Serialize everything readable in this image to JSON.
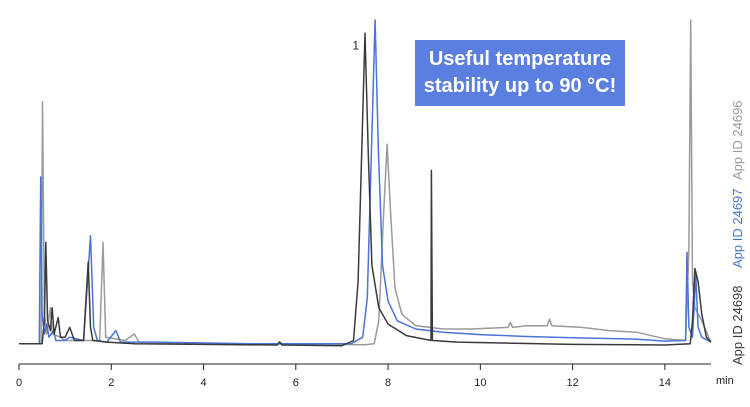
{
  "callout": {
    "text": "Useful temperature stability up to 90 °C!"
  },
  "app_ids": {
    "black": "App ID 24698",
    "blue": "App ID 24697",
    "gray": "App ID 24696"
  },
  "colors": {
    "black": "#3a3a3a",
    "blue": "#4a73d6",
    "gray": "#9a9a9a",
    "callout": "#5b7fe0"
  },
  "chart_data": {
    "type": "line",
    "title": "",
    "xlabel": "min",
    "ylabel": "",
    "xlim": [
      0,
      15
    ],
    "ylim": [
      0,
      100
    ],
    "x_ticks": [
      0,
      2,
      4,
      6,
      8,
      10,
      12,
      14
    ],
    "y_axis_visible": false,
    "grid": false,
    "annotations": [
      {
        "text": "1",
        "x": 7.3,
        "y": 91
      }
    ],
    "series": [
      {
        "name": "App ID 24698",
        "color": "#3a3a3a",
        "points": [
          [
            0,
            1
          ],
          [
            0.5,
            1
          ],
          [
            0.55,
            8
          ],
          [
            0.58,
            32
          ],
          [
            0.62,
            8
          ],
          [
            0.68,
            5
          ],
          [
            0.72,
            12
          ],
          [
            0.76,
            4
          ],
          [
            0.85,
            9
          ],
          [
            0.9,
            3
          ],
          [
            1.0,
            3
          ],
          [
            1.1,
            6
          ],
          [
            1.2,
            2
          ],
          [
            1.4,
            2
          ],
          [
            1.5,
            26
          ],
          [
            1.55,
            6
          ],
          [
            1.6,
            2
          ],
          [
            1.9,
            1.5
          ],
          [
            2.5,
            1
          ],
          [
            4,
            0.8
          ],
          [
            5.6,
            0.6
          ],
          [
            5.65,
            1.6
          ],
          [
            5.7,
            0.6
          ],
          [
            7.0,
            0.4
          ],
          [
            7.25,
            2
          ],
          [
            7.35,
            20
          ],
          [
            7.42,
            55
          ],
          [
            7.5,
            96
          ],
          [
            7.57,
            60
          ],
          [
            7.65,
            25
          ],
          [
            7.8,
            12
          ],
          [
            8.0,
            7
          ],
          [
            8.4,
            3.5
          ],
          [
            8.93,
            2
          ],
          [
            8.94,
            54
          ],
          [
            8.96,
            2
          ],
          [
            9.5,
            1.5
          ],
          [
            12,
            0.8
          ],
          [
            14,
            0.6
          ],
          [
            14.55,
            1
          ],
          [
            14.6,
            8
          ],
          [
            14.65,
            24
          ],
          [
            14.72,
            20
          ],
          [
            14.8,
            10
          ],
          [
            14.9,
            3
          ],
          [
            15,
            1.5
          ]
        ]
      },
      {
        "name": "App ID 24697",
        "color": "#4a73d6",
        "points": [
          [
            0,
            1
          ],
          [
            0.44,
            1
          ],
          [
            0.47,
            52
          ],
          [
            0.5,
            10
          ],
          [
            0.55,
            4
          ],
          [
            0.6,
            7
          ],
          [
            0.65,
            3
          ],
          [
            0.75,
            5
          ],
          [
            0.8,
            2
          ],
          [
            1.0,
            2
          ],
          [
            1.1,
            3
          ],
          [
            1.4,
            2
          ],
          [
            1.55,
            34
          ],
          [
            1.62,
            6
          ],
          [
            1.7,
            2
          ],
          [
            1.9,
            1.5
          ],
          [
            2.1,
            5
          ],
          [
            2.2,
            1.5
          ],
          [
            3,
            1.5
          ],
          [
            5,
            1
          ],
          [
            7.2,
            1
          ],
          [
            7.45,
            3
          ],
          [
            7.55,
            15
          ],
          [
            7.65,
            65
          ],
          [
            7.72,
            100
          ],
          [
            7.79,
            60
          ],
          [
            7.88,
            25
          ],
          [
            8.0,
            14
          ],
          [
            8.2,
            8
          ],
          [
            8.6,
            5.5
          ],
          [
            9.2,
            4.5
          ],
          [
            10,
            3.8
          ],
          [
            11,
            3.2
          ],
          [
            12,
            2.8
          ],
          [
            13.4,
            2.4
          ],
          [
            14,
            1.8
          ],
          [
            14.45,
            2
          ],
          [
            14.48,
            29
          ],
          [
            14.52,
            6
          ],
          [
            14.6,
            3
          ],
          [
            14.67,
            22
          ],
          [
            14.72,
            6
          ],
          [
            14.8,
            3
          ],
          [
            15,
            1.5
          ]
        ]
      },
      {
        "name": "App ID 24696",
        "color": "#9a9a9a",
        "points": [
          [
            0,
            1
          ],
          [
            0.48,
            1
          ],
          [
            0.51,
            75
          ],
          [
            0.55,
            10
          ],
          [
            0.6,
            4
          ],
          [
            0.68,
            12
          ],
          [
            0.72,
            4
          ],
          [
            0.9,
            3
          ],
          [
            1.0,
            2
          ],
          [
            1.3,
            2
          ],
          [
            1.75,
            2
          ],
          [
            1.82,
            32
          ],
          [
            1.88,
            3
          ],
          [
            2.3,
            2
          ],
          [
            2.5,
            4
          ],
          [
            2.6,
            1.5
          ],
          [
            3.5,
            1.2
          ],
          [
            5,
            1
          ],
          [
            6,
            0.9
          ],
          [
            7.5,
            0.7
          ],
          [
            7.7,
            1
          ],
          [
            7.8,
            8
          ],
          [
            7.9,
            40
          ],
          [
            7.98,
            62
          ],
          [
            8.06,
            40
          ],
          [
            8.15,
            18
          ],
          [
            8.3,
            10
          ],
          [
            8.6,
            6.5
          ],
          [
            9.2,
            5.5
          ],
          [
            9.8,
            5.5
          ],
          [
            10.6,
            6
          ],
          [
            10.65,
            7.5
          ],
          [
            10.7,
            6
          ],
          [
            11.0,
            6.5
          ],
          [
            11.45,
            6.5
          ],
          [
            11.5,
            8.5
          ],
          [
            11.55,
            6.5
          ],
          [
            12.2,
            6
          ],
          [
            12.8,
            5
          ],
          [
            13.4,
            4.5
          ],
          [
            14.0,
            2.5
          ],
          [
            14.45,
            2
          ],
          [
            14.52,
            30
          ],
          [
            14.56,
            100
          ],
          [
            14.6,
            20
          ],
          [
            14.65,
            12
          ],
          [
            14.8,
            8
          ],
          [
            14.95,
            3
          ],
          [
            15,
            1.5
          ]
        ]
      }
    ]
  }
}
